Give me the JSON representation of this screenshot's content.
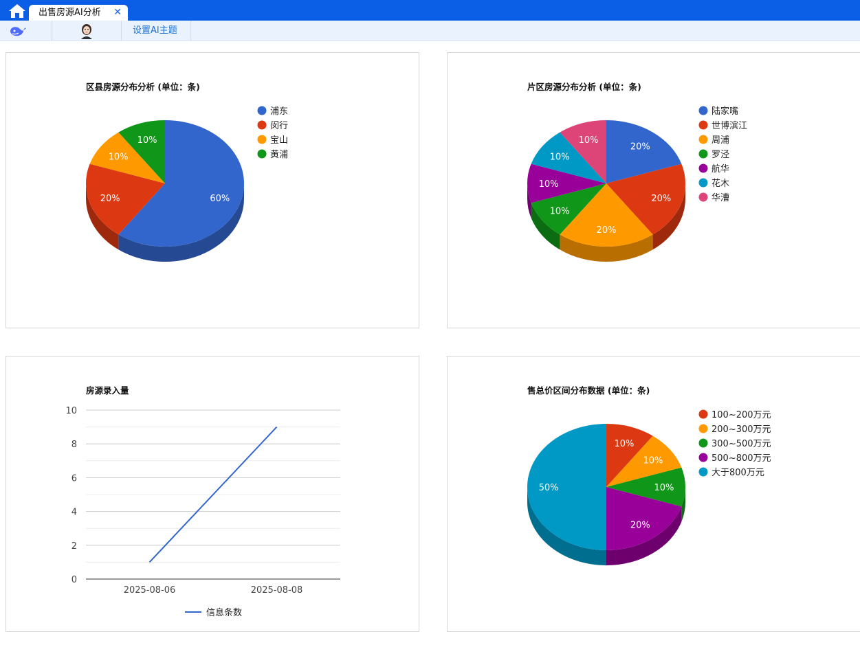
{
  "tabbar": {
    "tab_title": "出售房源AI分析",
    "close_glyph": "✕",
    "home_icon": "home-icon"
  },
  "toolbar": {
    "deepseek_icon": "deepseek-whale-icon",
    "avatar_icon": "avatar-icon",
    "set_theme_label": "设置AI主题"
  },
  "colors": {
    "topbar": "#0a5fe6",
    "toolbar_bg": "#eaf3fd",
    "accent": "#1a6fd1"
  },
  "chart_data": [
    {
      "type": "pie",
      "style": "3d",
      "title": "区县房源分布分析 (单位：条)",
      "legend_position": "right",
      "slices": [
        {
          "label": "浦东",
          "value": 60,
          "color": "#3366cc"
        },
        {
          "label": "闵行",
          "value": 20,
          "color": "#dc3912"
        },
        {
          "label": "宝山",
          "value": 10,
          "color": "#ff9900"
        },
        {
          "label": "黄浦",
          "value": 10,
          "color": "#109618"
        }
      ]
    },
    {
      "type": "pie",
      "style": "3d",
      "title": "片区房源分布分析 (单位：条)",
      "legend_position": "right",
      "slices": [
        {
          "label": "陆家嘴",
          "value": 20,
          "color": "#3366cc"
        },
        {
          "label": "世博滨江",
          "value": 20,
          "color": "#dc3912"
        },
        {
          "label": "周浦",
          "value": 20,
          "color": "#ff9900"
        },
        {
          "label": "罗泾",
          "value": 10,
          "color": "#109618"
        },
        {
          "label": "航华",
          "value": 10,
          "color": "#990099"
        },
        {
          "label": "花木",
          "value": 10,
          "color": "#0099c6"
        },
        {
          "label": "华漕",
          "value": 10,
          "color": "#dd4477"
        }
      ]
    },
    {
      "type": "line",
      "title": "房源录入量",
      "categories": [
        "2025-08-06",
        "2025-08-08"
      ],
      "series": [
        {
          "name": "信息条数",
          "values": [
            1,
            9
          ],
          "color": "#3366cc"
        }
      ],
      "ylim": [
        0,
        10
      ],
      "yticks": [
        0,
        2,
        4,
        6,
        8,
        10
      ],
      "grid": true,
      "legend_position": "bottom"
    },
    {
      "type": "pie",
      "style": "3d",
      "title": "售总价区间分布数据 (单位：条)",
      "legend_position": "right",
      "slices": [
        {
          "label": "100~200万元",
          "value": 10,
          "color": "#dc3912"
        },
        {
          "label": "200~300万元",
          "value": 10,
          "color": "#ff9900"
        },
        {
          "label": "300~500万元",
          "value": 10,
          "color": "#109618"
        },
        {
          "label": "500~800万元",
          "value": 20,
          "color": "#990099"
        },
        {
          "label": "大于800万元",
          "value": 50,
          "color": "#0099c6"
        }
      ]
    }
  ]
}
